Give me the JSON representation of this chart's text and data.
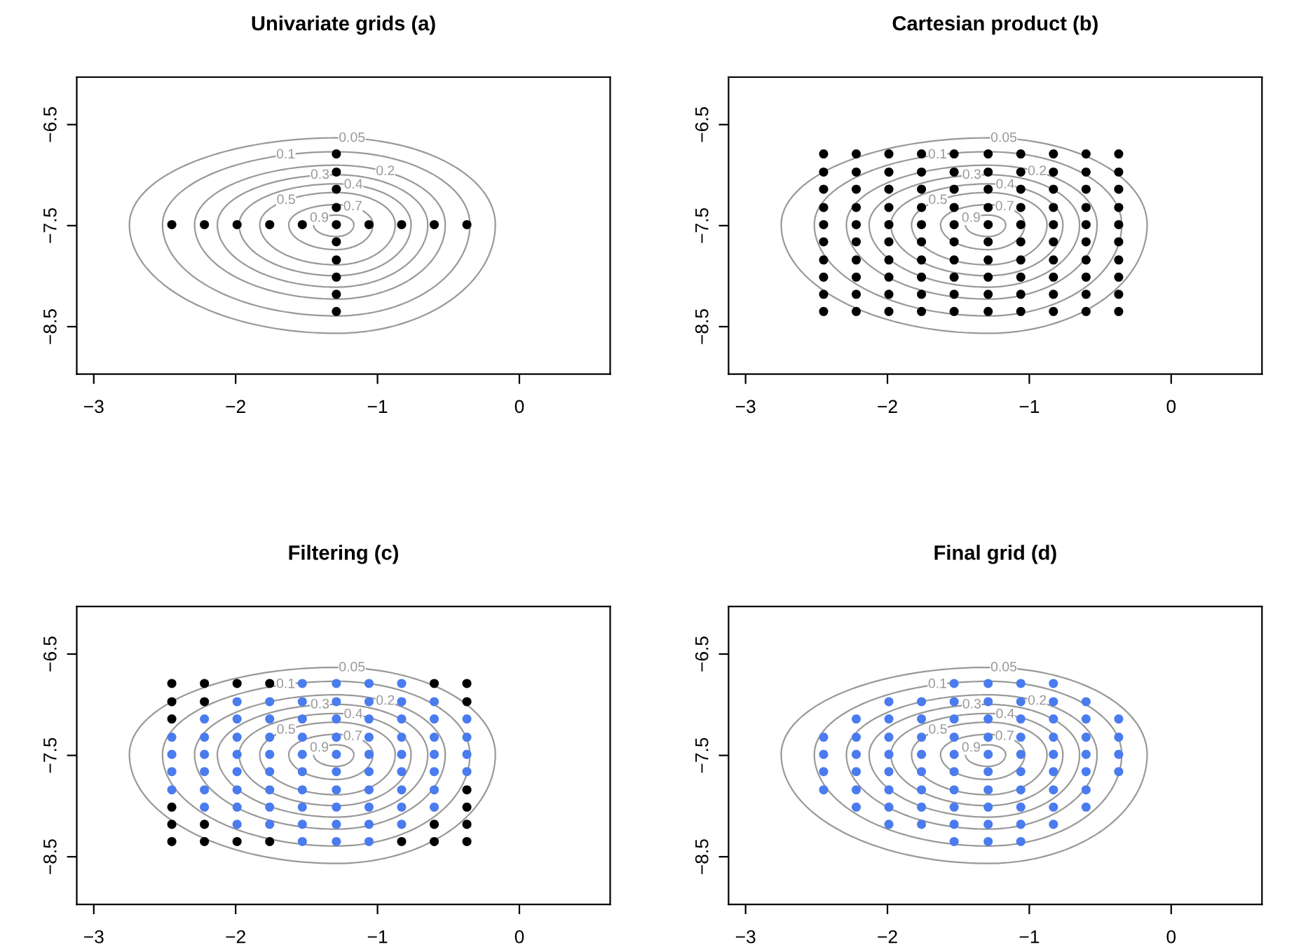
{
  "chart_data": [
    {
      "type": "scatter",
      "title": "Univariate grids (a)",
      "xlim": [
        -3.12,
        0.64
      ],
      "ylim": [
        -8.97,
        -6.03
      ],
      "xticks": [
        {
          "value": -3,
          "label": "−3"
        },
        {
          "value": -2,
          "label": "−2"
        },
        {
          "value": -1,
          "label": "−1"
        },
        0
      ],
      "yticks": [
        {
          "value": -6.5,
          "label": "−6.5"
        },
        {
          "value": -7.5,
          "label": "−7.5"
        },
        {
          "value": -8.5,
          "label": "−8.5"
        }
      ],
      "grid": false,
      "marker": "circle",
      "annotations": [
        "0.05",
        "0.1",
        "0.2",
        "0.3",
        "0.4",
        "0.5",
        "0.7",
        "0.9"
      ],
      "series": [
        {
          "color": "#000000",
          "x": [
            -2.45,
            -2.22,
            -1.99,
            -1.76,
            -1.53,
            -1.29,
            -1.06,
            -0.83,
            -0.6,
            -0.37,
            -1.29,
            -1.29,
            -1.29,
            -1.29,
            -1.29,
            -1.29,
            -1.29,
            -1.29,
            -1.29
          ],
          "values": [
            -7.49,
            -7.49,
            -7.49,
            -7.49,
            -7.49,
            -7.49,
            -7.49,
            -7.49,
            -7.49,
            -7.49,
            -6.79,
            -6.97,
            -7.14,
            -7.32,
            -7.66,
            -7.84,
            -8.01,
            -8.18,
            -8.35
          ]
        }
      ]
    },
    {
      "type": "scatter",
      "title": "Cartesian product (b)",
      "xlim": [
        -3.12,
        0.64
      ],
      "ylim": [
        -8.97,
        -6.03
      ],
      "xticks": [
        {
          "value": -3,
          "label": "−3"
        },
        {
          "value": -2,
          "label": "−2"
        },
        {
          "value": -1,
          "label": "−1"
        },
        0
      ],
      "yticks": [
        {
          "value": -6.5,
          "label": "−6.5"
        },
        {
          "value": -7.5,
          "label": "−7.5"
        },
        {
          "value": -8.5,
          "label": "−8.5"
        }
      ],
      "grid": false,
      "marker": "circle",
      "annotations": [
        "0.05",
        "0.1",
        "0.2",
        "0.3",
        "0.4",
        "0.5",
        "0.7",
        "0.9"
      ],
      "series": [
        {
          "color": "#000000",
          "x": [
            -2.45,
            -2.45,
            -2.45,
            -2.45,
            -2.45,
            -2.45,
            -2.45,
            -2.45,
            -2.45,
            -2.45,
            -2.22,
            -2.22,
            -2.22,
            -2.22,
            -2.22,
            -2.22,
            -2.22,
            -2.22,
            -2.22,
            -2.22,
            -1.99,
            -1.99,
            -1.99,
            -1.99,
            -1.99,
            -1.99,
            -1.99,
            -1.99,
            -1.99,
            -1.99,
            -1.76,
            -1.76,
            -1.76,
            -1.76,
            -1.76,
            -1.76,
            -1.76,
            -1.76,
            -1.76,
            -1.76,
            -1.53,
            -1.53,
            -1.53,
            -1.53,
            -1.53,
            -1.53,
            -1.53,
            -1.53,
            -1.53,
            -1.53,
            -1.29,
            -1.29,
            -1.29,
            -1.29,
            -1.29,
            -1.29,
            -1.29,
            -1.29,
            -1.29,
            -1.29,
            -1.06,
            -1.06,
            -1.06,
            -1.06,
            -1.06,
            -1.06,
            -1.06,
            -1.06,
            -1.06,
            -1.06,
            -0.83,
            -0.83,
            -0.83,
            -0.83,
            -0.83,
            -0.83,
            -0.83,
            -0.83,
            -0.83,
            -0.83,
            -0.6,
            -0.6,
            -0.6,
            -0.6,
            -0.6,
            -0.6,
            -0.6,
            -0.6,
            -0.6,
            -0.6,
            -0.37,
            -0.37,
            -0.37,
            -0.37,
            -0.37,
            -0.37,
            -0.37,
            -0.37,
            -0.37,
            -0.37
          ],
          "values": [
            -6.79,
            -6.97,
            -7.14,
            -7.32,
            -7.49,
            -7.66,
            -7.84,
            -8.01,
            -8.18,
            -8.35,
            -6.79,
            -6.97,
            -7.14,
            -7.32,
            -7.49,
            -7.66,
            -7.84,
            -8.01,
            -8.18,
            -8.35,
            -6.79,
            -6.97,
            -7.14,
            -7.32,
            -7.49,
            -7.66,
            -7.84,
            -8.01,
            -8.18,
            -8.35,
            -6.79,
            -6.97,
            -7.14,
            -7.32,
            -7.49,
            -7.66,
            -7.84,
            -8.01,
            -8.18,
            -8.35,
            -6.79,
            -6.97,
            -7.14,
            -7.32,
            -7.49,
            -7.66,
            -7.84,
            -8.01,
            -8.18,
            -8.35,
            -6.79,
            -6.97,
            -7.14,
            -7.32,
            -7.49,
            -7.66,
            -7.84,
            -8.01,
            -8.18,
            -8.35,
            -6.79,
            -6.97,
            -7.14,
            -7.32,
            -7.49,
            -7.66,
            -7.84,
            -8.01,
            -8.18,
            -8.35,
            -6.79,
            -6.97,
            -7.14,
            -7.32,
            -7.49,
            -7.66,
            -7.84,
            -8.01,
            -8.18,
            -8.35,
            -6.79,
            -6.97,
            -7.14,
            -7.32,
            -7.49,
            -7.66,
            -7.84,
            -8.01,
            -8.18,
            -8.35,
            -6.79,
            -6.97,
            -7.14,
            -7.32,
            -7.49,
            -7.66,
            -7.84,
            -8.01,
            -8.18,
            -8.35
          ]
        }
      ]
    },
    {
      "type": "scatter",
      "title": "Filtering (c)",
      "xlim": [
        -3.12,
        0.64
      ],
      "ylim": [
        -8.97,
        -6.03
      ],
      "xticks": [
        {
          "value": -3,
          "label": "−3"
        },
        {
          "value": -2,
          "label": "−2"
        },
        {
          "value": -1,
          "label": "−1"
        },
        0
      ],
      "yticks": [
        {
          "value": -6.5,
          "label": "−6.5"
        },
        {
          "value": -7.5,
          "label": "−7.5"
        },
        {
          "value": -8.5,
          "label": "−8.5"
        }
      ],
      "grid": false,
      "marker": "circle",
      "annotations": [
        "0.05",
        "0.1",
        "0.2",
        "0.3",
        "0.4",
        "0.5",
        "0.7",
        "0.9"
      ],
      "series": [
        {
          "color": "#000000",
          "x": [
            -2.45,
            -2.45,
            -2.45,
            -2.45,
            -2.45,
            -2.45,
            -2.22,
            -2.22,
            -2.22,
            -2.22,
            -1.99,
            -1.99,
            -1.76,
            -1.76,
            -0.83,
            -0.6,
            -0.6,
            -0.6,
            -0.37,
            -0.37,
            -0.37,
            -0.37,
            -0.37,
            -0.37
          ],
          "values": [
            -6.79,
            -6.97,
            -7.14,
            -8.01,
            -8.18,
            -8.35,
            -6.79,
            -6.97,
            -8.18,
            -8.35,
            -6.79,
            -8.35,
            -6.79,
            -8.35,
            -8.35,
            -6.79,
            -8.18,
            -8.35,
            -6.79,
            -6.97,
            -7.84,
            -8.01,
            -8.18,
            -8.35
          ]
        },
        {
          "color": "#4a7bef",
          "x": [
            -2.45,
            -2.45,
            -2.45,
            -2.45,
            -2.22,
            -2.22,
            -2.22,
            -2.22,
            -2.22,
            -2.22,
            -1.99,
            -1.99,
            -1.99,
            -1.99,
            -1.99,
            -1.99,
            -1.99,
            -1.99,
            -1.76,
            -1.76,
            -1.76,
            -1.76,
            -1.76,
            -1.76,
            -1.76,
            -1.76,
            -1.53,
            -1.53,
            -1.53,
            -1.53,
            -1.53,
            -1.53,
            -1.53,
            -1.53,
            -1.53,
            -1.53,
            -1.29,
            -1.29,
            -1.29,
            -1.29,
            -1.29,
            -1.29,
            -1.29,
            -1.29,
            -1.29,
            -1.29,
            -1.06,
            -1.06,
            -1.06,
            -1.06,
            -1.06,
            -1.06,
            -1.06,
            -1.06,
            -1.06,
            -1.06,
            -0.83,
            -0.83,
            -0.83,
            -0.83,
            -0.83,
            -0.83,
            -0.83,
            -0.83,
            -0.83,
            -0.6,
            -0.6,
            -0.6,
            -0.6,
            -0.6,
            -0.6,
            -0.6,
            -0.37,
            -0.37,
            -0.37,
            -0.37
          ],
          "values": [
            -7.32,
            -7.49,
            -7.66,
            -7.84,
            -7.14,
            -7.32,
            -7.49,
            -7.66,
            -7.84,
            -8.01,
            -6.97,
            -7.14,
            -7.32,
            -7.49,
            -7.66,
            -7.84,
            -8.01,
            -8.18,
            -6.97,
            -7.14,
            -7.32,
            -7.49,
            -7.66,
            -7.84,
            -8.01,
            -8.18,
            -6.79,
            -6.97,
            -7.14,
            -7.32,
            -7.49,
            -7.66,
            -7.84,
            -8.01,
            -8.18,
            -8.35,
            -6.79,
            -6.97,
            -7.14,
            -7.32,
            -7.49,
            -7.66,
            -7.84,
            -8.01,
            -8.18,
            -8.35,
            -6.79,
            -6.97,
            -7.14,
            -7.32,
            -7.49,
            -7.66,
            -7.84,
            -8.01,
            -8.18,
            -8.35,
            -6.79,
            -6.97,
            -7.14,
            -7.32,
            -7.49,
            -7.66,
            -7.84,
            -8.01,
            -8.18,
            -6.97,
            -7.14,
            -7.32,
            -7.49,
            -7.66,
            -7.84,
            -8.01,
            -7.14,
            -7.32,
            -7.49,
            -7.66
          ]
        }
      ]
    },
    {
      "type": "scatter",
      "title": "Final grid (d)",
      "xlim": [
        -3.12,
        0.64
      ],
      "ylim": [
        -8.97,
        -6.03
      ],
      "xticks": [
        {
          "value": -3,
          "label": "−3"
        },
        {
          "value": -2,
          "label": "−2"
        },
        {
          "value": -1,
          "label": "−1"
        },
        0
      ],
      "yticks": [
        {
          "value": -6.5,
          "label": "−6.5"
        },
        {
          "value": -7.5,
          "label": "−7.5"
        },
        {
          "value": -8.5,
          "label": "−8.5"
        }
      ],
      "grid": false,
      "marker": "circle",
      "annotations": [
        "0.05",
        "0.1",
        "0.2",
        "0.3",
        "0.4",
        "0.5",
        "0.7",
        "0.9"
      ],
      "series": [
        {
          "color": "#4a7bef",
          "x": [
            -2.45,
            -2.45,
            -2.45,
            -2.45,
            -2.22,
            -2.22,
            -2.22,
            -2.22,
            -2.22,
            -2.22,
            -1.99,
            -1.99,
            -1.99,
            -1.99,
            -1.99,
            -1.99,
            -1.99,
            -1.99,
            -1.76,
            -1.76,
            -1.76,
            -1.76,
            -1.76,
            -1.76,
            -1.76,
            -1.76,
            -1.53,
            -1.53,
            -1.53,
            -1.53,
            -1.53,
            -1.53,
            -1.53,
            -1.53,
            -1.53,
            -1.53,
            -1.29,
            -1.29,
            -1.29,
            -1.29,
            -1.29,
            -1.29,
            -1.29,
            -1.29,
            -1.29,
            -1.29,
            -1.06,
            -1.06,
            -1.06,
            -1.06,
            -1.06,
            -1.06,
            -1.06,
            -1.06,
            -1.06,
            -1.06,
            -0.83,
            -0.83,
            -0.83,
            -0.83,
            -0.83,
            -0.83,
            -0.83,
            -0.83,
            -0.83,
            -0.6,
            -0.6,
            -0.6,
            -0.6,
            -0.6,
            -0.6,
            -0.6,
            -0.37,
            -0.37,
            -0.37,
            -0.37
          ],
          "values": [
            -7.32,
            -7.49,
            -7.66,
            -7.84,
            -7.14,
            -7.32,
            -7.49,
            -7.66,
            -7.84,
            -8.01,
            -6.97,
            -7.14,
            -7.32,
            -7.49,
            -7.66,
            -7.84,
            -8.01,
            -8.18,
            -6.97,
            -7.14,
            -7.32,
            -7.49,
            -7.66,
            -7.84,
            -8.01,
            -8.18,
            -6.79,
            -6.97,
            -7.14,
            -7.32,
            -7.49,
            -7.66,
            -7.84,
            -8.01,
            -8.18,
            -8.35,
            -6.79,
            -6.97,
            -7.14,
            -7.32,
            -7.49,
            -7.66,
            -7.84,
            -8.01,
            -8.18,
            -8.35,
            -6.79,
            -6.97,
            -7.14,
            -7.32,
            -7.49,
            -7.66,
            -7.84,
            -8.01,
            -8.18,
            -8.35,
            -6.79,
            -6.97,
            -7.14,
            -7.32,
            -7.49,
            -7.66,
            -7.84,
            -8.01,
            -8.18,
            -6.97,
            -7.14,
            -7.32,
            -7.49,
            -7.66,
            -7.84,
            -8.01,
            -7.14,
            -7.32,
            -7.49,
            -7.66
          ]
        }
      ]
    }
  ]
}
